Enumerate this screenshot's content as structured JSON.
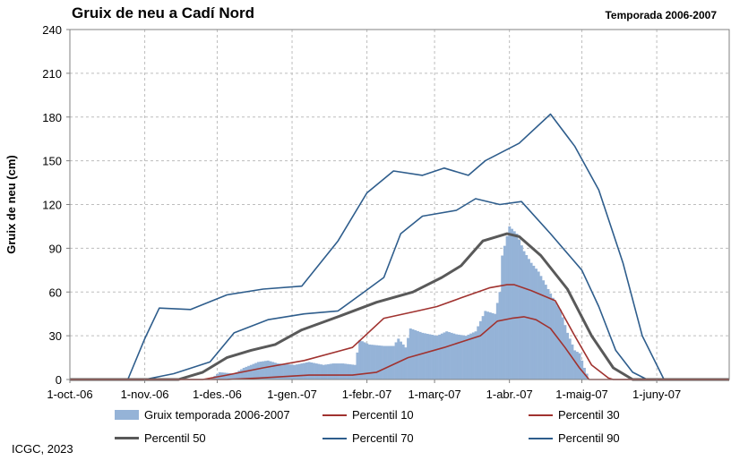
{
  "header": {
    "title": "Gruix de neu a Cadí Nord",
    "season": "Temporada 2006-2007"
  },
  "footer": {
    "credit": "ICGC, 2023"
  },
  "colors": {
    "bars": "#95b3d7",
    "p10": "#a0322f",
    "p30": "#a0322f",
    "p50": "#595959",
    "p70": "#2e5d8c",
    "p90": "#2e5d8c",
    "grid": "#bdbdbd"
  },
  "chart_data": {
    "type": "bar+line",
    "ylabel": "Gruix de neu (cm)",
    "ylim": [
      0,
      240
    ],
    "yticks": [
      0,
      30,
      60,
      90,
      120,
      150,
      180,
      210,
      240
    ],
    "xlim": [
      "2006-10-01",
      "2007-07-01"
    ],
    "xtick_labels": [
      "1-oct.-06",
      "1-nov.-06",
      "1-des.-06",
      "1-gen.-07",
      "1-febr.-07",
      "1-març-07",
      "1-abr.-07",
      "1-maig-07",
      "1-juny-07"
    ],
    "xtick_dates": [
      "2006-10-01",
      "2006-11-01",
      "2006-12-01",
      "2007-01-01",
      "2007-02-01",
      "2007-03-01",
      "2007-04-01",
      "2007-05-01",
      "2007-06-01"
    ],
    "grid": true,
    "legend": [
      {
        "key": "bars",
        "label": "Gruix temporada 2006-2007"
      },
      {
        "key": "p10",
        "label": "Percentil 10"
      },
      {
        "key": "p30",
        "label": "Percentil 30"
      },
      {
        "key": "p50",
        "label": "Percentil 50"
      },
      {
        "key": "p70",
        "label": "Percentil 70"
      },
      {
        "key": "p90",
        "label": "Percentil 90"
      }
    ],
    "season_bars": [
      [
        "2006-11-28",
        0
      ],
      [
        "2006-12-02",
        5
      ],
      [
        "2006-12-08",
        4
      ],
      [
        "2006-12-12",
        8
      ],
      [
        "2006-12-18",
        12
      ],
      [
        "2006-12-22",
        13
      ],
      [
        "2006-12-26",
        11
      ],
      [
        "2007-01-02",
        10
      ],
      [
        "2007-01-08",
        12
      ],
      [
        "2007-01-14",
        10
      ],
      [
        "2007-01-18",
        11
      ],
      [
        "2007-01-22",
        11
      ],
      [
        "2007-01-27",
        10
      ],
      [
        "2007-01-29",
        27
      ],
      [
        "2007-02-02",
        24
      ],
      [
        "2007-02-08",
        23
      ],
      [
        "2007-02-12",
        23
      ],
      [
        "2007-02-14",
        28
      ],
      [
        "2007-02-17",
        22
      ],
      [
        "2007-02-19",
        35
      ],
      [
        "2007-02-24",
        32
      ],
      [
        "2007-03-02",
        30
      ],
      [
        "2007-03-06",
        33
      ],
      [
        "2007-03-10",
        31
      ],
      [
        "2007-03-14",
        30
      ],
      [
        "2007-03-18",
        33
      ],
      [
        "2007-03-22",
        47
      ],
      [
        "2007-03-26",
        45
      ],
      [
        "2007-03-28",
        60
      ],
      [
        "2007-03-29",
        85
      ],
      [
        "2007-04-01",
        105
      ],
      [
        "2007-04-04",
        100
      ],
      [
        "2007-04-07",
        88
      ],
      [
        "2007-04-10",
        80
      ],
      [
        "2007-04-13",
        74
      ],
      [
        "2007-04-16",
        65
      ],
      [
        "2007-04-19",
        56
      ],
      [
        "2007-04-22",
        48
      ],
      [
        "2007-04-25",
        32
      ],
      [
        "2007-04-28",
        20
      ],
      [
        "2007-04-30",
        18
      ],
      [
        "2007-05-02",
        8
      ],
      [
        "2007-05-04",
        0
      ]
    ],
    "percentiles": {
      "p10": [
        [
          "2006-10-01",
          0
        ],
        [
          "2006-12-05",
          0
        ],
        [
          "2006-12-18",
          1
        ],
        [
          "2007-01-08",
          3
        ],
        [
          "2007-01-26",
          3
        ],
        [
          "2007-02-05",
          5
        ],
        [
          "2007-02-18",
          15
        ],
        [
          "2007-03-05",
          22
        ],
        [
          "2007-03-20",
          30
        ],
        [
          "2007-03-27",
          40
        ],
        [
          "2007-04-02",
          42
        ],
        [
          "2007-04-07",
          43
        ],
        [
          "2007-04-12",
          41
        ],
        [
          "2007-04-18",
          35
        ],
        [
          "2007-04-24",
          22
        ],
        [
          "2007-04-30",
          8
        ],
        [
          "2007-05-04",
          0
        ],
        [
          "2007-07-01",
          0
        ]
      ],
      "p30": [
        [
          "2006-10-01",
          0
        ],
        [
          "2006-11-25",
          0
        ],
        [
          "2006-12-05",
          3
        ],
        [
          "2006-12-20",
          8
        ],
        [
          "2007-01-06",
          13
        ],
        [
          "2007-01-26",
          22
        ],
        [
          "2007-02-08",
          42
        ],
        [
          "2007-02-22",
          47
        ],
        [
          "2007-03-02",
          50
        ],
        [
          "2007-03-12",
          56
        ],
        [
          "2007-03-24",
          63
        ],
        [
          "2007-03-31",
          65
        ],
        [
          "2007-04-03",
          65
        ],
        [
          "2007-04-10",
          61
        ],
        [
          "2007-04-20",
          54
        ],
        [
          "2007-04-28",
          30
        ],
        [
          "2007-05-05",
          10
        ],
        [
          "2007-05-12",
          1
        ],
        [
          "2007-05-14",
          0
        ],
        [
          "2007-07-01",
          0
        ]
      ],
      "p50": [
        [
          "2006-10-01",
          0
        ],
        [
          "2006-11-15",
          0
        ],
        [
          "2006-11-25",
          5
        ],
        [
          "2006-12-05",
          15
        ],
        [
          "2006-12-15",
          20
        ],
        [
          "2006-12-25",
          24
        ],
        [
          "2007-01-05",
          34
        ],
        [
          "2007-01-20",
          43
        ],
        [
          "2007-02-05",
          53
        ],
        [
          "2007-02-20",
          60
        ],
        [
          "2007-03-04",
          70
        ],
        [
          "2007-03-12",
          78
        ],
        [
          "2007-03-21",
          95
        ],
        [
          "2007-03-31",
          100
        ],
        [
          "2007-04-05",
          98
        ],
        [
          "2007-04-14",
          85
        ],
        [
          "2007-04-25",
          62
        ],
        [
          "2007-05-05",
          30
        ],
        [
          "2007-05-14",
          8
        ],
        [
          "2007-05-22",
          0
        ],
        [
          "2007-07-01",
          0
        ]
      ],
      "p70": [
        [
          "2006-10-01",
          0
        ],
        [
          "2006-11-01",
          0
        ],
        [
          "2006-11-13",
          4
        ],
        [
          "2006-11-28",
          12
        ],
        [
          "2006-12-08",
          32
        ],
        [
          "2006-12-22",
          41
        ],
        [
          "2007-01-06",
          45
        ],
        [
          "2007-01-20",
          47
        ],
        [
          "2007-01-30",
          59
        ],
        [
          "2007-02-08",
          70
        ],
        [
          "2007-02-15",
          100
        ],
        [
          "2007-02-24",
          112
        ],
        [
          "2007-03-10",
          116
        ],
        [
          "2007-03-18",
          124
        ],
        [
          "2007-03-28",
          120
        ],
        [
          "2007-04-06",
          122
        ],
        [
          "2007-04-18",
          100
        ],
        [
          "2007-05-01",
          75
        ],
        [
          "2007-05-08",
          50
        ],
        [
          "2007-05-15",
          20
        ],
        [
          "2007-05-22",
          5
        ],
        [
          "2007-05-28",
          0
        ],
        [
          "2007-07-01",
          0
        ]
      ],
      "p90": [
        [
          "2006-10-01",
          0
        ],
        [
          "2006-10-25",
          0
        ],
        [
          "2006-11-01",
          28
        ],
        [
          "2006-11-07",
          49
        ],
        [
          "2006-11-20",
          48
        ],
        [
          "2006-12-05",
          58
        ],
        [
          "2006-12-20",
          62
        ],
        [
          "2007-01-05",
          64
        ],
        [
          "2007-01-20",
          95
        ],
        [
          "2007-02-01",
          128
        ],
        [
          "2007-02-12",
          143
        ],
        [
          "2007-02-24",
          140
        ],
        [
          "2007-03-05",
          145
        ],
        [
          "2007-03-15",
          140
        ],
        [
          "2007-03-22",
          150
        ],
        [
          "2007-04-05",
          162
        ],
        [
          "2007-04-18",
          182
        ],
        [
          "2007-04-28",
          160
        ],
        [
          "2007-05-08",
          130
        ],
        [
          "2007-05-18",
          80
        ],
        [
          "2007-05-26",
          30
        ],
        [
          "2007-06-04",
          0
        ],
        [
          "2007-07-01",
          0
        ]
      ]
    }
  }
}
